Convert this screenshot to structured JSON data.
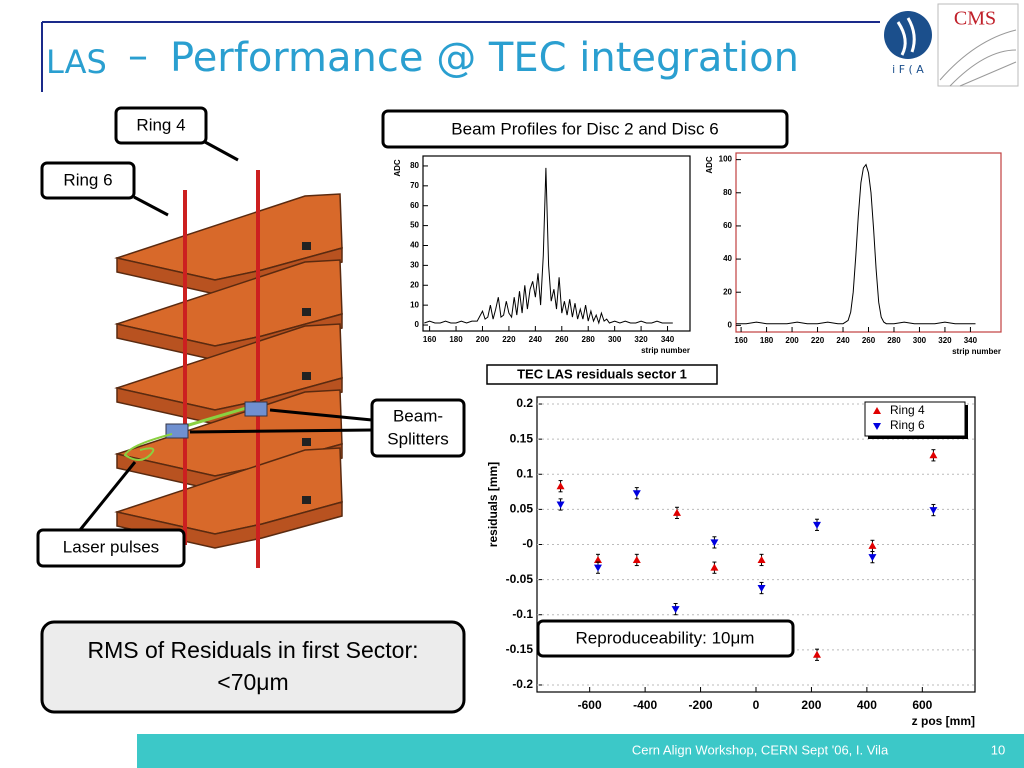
{
  "header": {
    "title_prefix": "LAS",
    "title_dash": "–",
    "title": "Performance @ TEC integration",
    "logo_left": "i F ( A",
    "logo_right": "CMS"
  },
  "diagram": {
    "ring4": "Ring 4",
    "ring6": "Ring 6",
    "beam_splitters": [
      "Beam-",
      "Splitters"
    ],
    "laser": "Laser pulses"
  },
  "rms_box": [
    "RMS of Residuals in first Sector:",
    "<70μm"
  ],
  "profiles_title": "Beam Profiles for Disc 2 and Disc 6",
  "footer": {
    "text": "Cern Align Workshop, CERN Sept '06,   I. Vila",
    "page": "10"
  },
  "chart_data": [
    {
      "type": "line",
      "ylabel": "ADC",
      "xlabel": "strip number",
      "color": "#000000",
      "x": [
        156,
        160,
        164,
        168,
        172,
        176,
        180,
        184,
        188,
        192,
        196,
        200,
        202,
        204,
        206,
        208,
        210,
        212,
        214,
        216,
        218,
        220,
        222,
        224,
        226,
        228,
        230,
        232,
        234,
        236,
        238,
        240,
        242,
        244,
        246,
        248,
        250,
        252,
        254,
        256,
        258,
        260,
        262,
        264,
        266,
        268,
        270,
        272,
        274,
        276,
        278,
        280,
        282,
        284,
        286,
        288,
        290,
        292,
        294,
        296,
        300,
        304,
        308,
        312,
        316,
        320,
        324,
        328,
        332,
        336,
        340,
        344
      ],
      "values": [
        1,
        2,
        1,
        1,
        2,
        1,
        1,
        2,
        1,
        2,
        2,
        7,
        3,
        4,
        10,
        3,
        8,
        14,
        4,
        5,
        12,
        6,
        4,
        14,
        5,
        17,
        6,
        20,
        8,
        18,
        22,
        14,
        26,
        10,
        35,
        79,
        30,
        12,
        18,
        8,
        24,
        6,
        12,
        5,
        13,
        4,
        11,
        3,
        8,
        3,
        10,
        2,
        7,
        2,
        5,
        1,
        6,
        2,
        3,
        1,
        2,
        1,
        2,
        1,
        1,
        2,
        1,
        1,
        2,
        1,
        1,
        1
      ],
      "xlim": [
        155,
        357
      ],
      "ylim": [
        -3,
        85
      ],
      "xticks": [
        160,
        180,
        200,
        220,
        240,
        260,
        280,
        300,
        320,
        340
      ],
      "yticks": [
        0,
        10,
        20,
        30,
        40,
        50,
        60,
        70,
        80
      ]
    },
    {
      "type": "line",
      "ylabel": "ADC",
      "xlabel": "strip number",
      "color": "#000000",
      "x": [
        156,
        164,
        172,
        180,
        188,
        196,
        204,
        212,
        220,
        228,
        236,
        240,
        242,
        244,
        246,
        248,
        250,
        252,
        254,
        256,
        258,
        260,
        262,
        264,
        266,
        268,
        270,
        272,
        274,
        276,
        280,
        288,
        296,
        304,
        312,
        320,
        328,
        336,
        344
      ],
      "values": [
        1,
        1,
        2,
        1,
        1,
        1,
        2,
        1,
        1,
        2,
        1,
        1,
        2,
        3,
        8,
        20,
        42,
        66,
        86,
        95,
        97,
        92,
        80,
        58,
        34,
        14,
        5,
        2,
        1,
        1,
        1,
        2,
        1,
        1,
        1,
        2,
        1,
        1,
        1
      ],
      "xlim": [
        156,
        364
      ],
      "ylim": [
        -4,
        104
      ],
      "xticks": [
        160,
        180,
        200,
        220,
        240,
        260,
        280,
        300,
        320,
        340
      ],
      "yticks": [
        0,
        20,
        40,
        60,
        80,
        100
      ]
    },
    {
      "type": "scatter",
      "title": "TEC LAS residuals sector 1",
      "ylabel": "residuals [mm]",
      "xlabel": "z pos [mm]",
      "annotation": "Reproduceability: 10μm",
      "legend": "top-right",
      "xlim": [
        -790,
        790
      ],
      "ylim": [
        -0.21,
        0.21
      ],
      "xticks": [
        -600,
        -400,
        -200,
        0,
        200,
        400,
        600
      ],
      "yticks": [
        0.2,
        0.15,
        0.1,
        0.05,
        {
          "value": 0,
          "label": "-0"
        },
        -0.05,
        -0.1,
        -0.15,
        -0.2
      ],
      "series": [
        {
          "name": "Ring 4",
          "color": "#e00000",
          "marker": "triangle-up",
          "x": [
            -705,
            -570,
            -430,
            -285,
            -150,
            20,
            220,
            420,
            640
          ],
          "values": [
            0.083,
            -0.022,
            -0.022,
            0.045,
            -0.033,
            -0.022,
            -0.157,
            -0.002,
            0.127
          ],
          "errors": [
            0.008,
            0.008,
            0.008,
            0.008,
            0.008,
            0.008,
            0.008,
            0.008,
            0.008
          ]
        },
        {
          "name": "Ring 6",
          "color": "#0000e0",
          "marker": "triangle-down",
          "x": [
            -705,
            -570,
            -430,
            -290,
            -150,
            20,
            220,
            420,
            640
          ],
          "values": [
            0.057,
            -0.033,
            0.073,
            -0.092,
            0.003,
            -0.062,
            0.028,
            -0.018,
            0.049
          ],
          "errors": [
            0.008,
            0.008,
            0.008,
            0.008,
            0.008,
            0.008,
            0.008,
            0.008,
            0.008
          ]
        }
      ]
    }
  ]
}
